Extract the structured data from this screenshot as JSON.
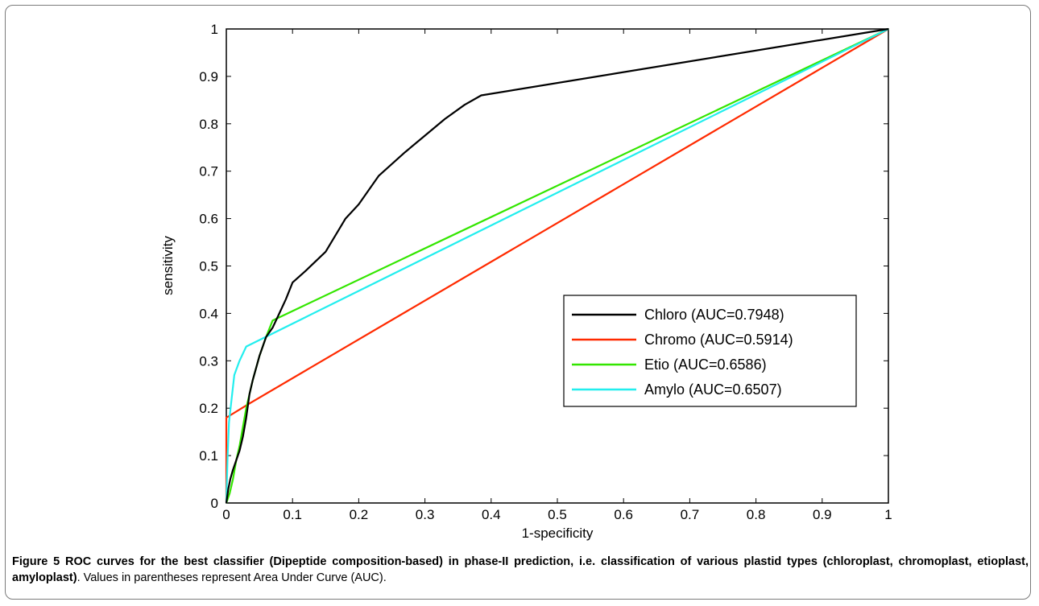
{
  "chart_data": {
    "type": "line",
    "title": "",
    "xlabel": "1-specificity",
    "ylabel": "sensitivity",
    "xlim": [
      0,
      1
    ],
    "ylim": [
      0,
      1
    ],
    "xticks": [
      "0",
      "0.1",
      "0.2",
      "0.3",
      "0.4",
      "0.5",
      "0.6",
      "0.7",
      "0.8",
      "0.9",
      "1"
    ],
    "yticks": [
      "0",
      "0.1",
      "0.2",
      "0.3",
      "0.4",
      "0.5",
      "0.6",
      "0.7",
      "0.8",
      "0.9",
      "1"
    ],
    "grid": false,
    "legend_position": "center-right",
    "series": [
      {
        "name": "Chloro (AUC=0.7948)",
        "color": "#000000",
        "x": [
          0,
          0.003,
          0.006,
          0.01,
          0.015,
          0.02,
          0.025,
          0.03,
          0.035,
          0.04,
          0.05,
          0.06,
          0.07,
          0.08,
          0.09,
          0.1,
          0.12,
          0.15,
          0.18,
          0.2,
          0.23,
          0.27,
          0.3,
          0.33,
          0.36,
          0.385,
          1
        ],
        "y": [
          0,
          0.03,
          0.05,
          0.07,
          0.09,
          0.11,
          0.14,
          0.18,
          0.23,
          0.26,
          0.31,
          0.35,
          0.37,
          0.4,
          0.43,
          0.465,
          0.49,
          0.53,
          0.6,
          0.63,
          0.69,
          0.74,
          0.775,
          0.81,
          0.84,
          0.86,
          1
        ]
      },
      {
        "name": "Chromo (AUC=0.5914)",
        "color": "#ff2a00",
        "x": [
          0,
          0,
          0.035,
          1
        ],
        "y": [
          0,
          0.18,
          0.21,
          1
        ]
      },
      {
        "name": "Etio (AUC=0.6586)",
        "color": "#33e600",
        "x": [
          0,
          0.005,
          0.01,
          0.015,
          0.02,
          0.03,
          0.04,
          0.05,
          0.06,
          0.07,
          1
        ],
        "y": [
          0,
          0.02,
          0.05,
          0.09,
          0.12,
          0.2,
          0.26,
          0.31,
          0.35,
          0.385,
          1
        ]
      },
      {
        "name": "Amylo (AUC=0.6507)",
        "color": "#22eeee",
        "x": [
          0,
          0.002,
          0.004,
          0.008,
          0.012,
          0.02,
          0.03,
          1
        ],
        "y": [
          0,
          0.1,
          0.17,
          0.22,
          0.27,
          0.3,
          0.33,
          1
        ]
      }
    ]
  },
  "caption": {
    "lead": "Figure 5 ROC curves for the best classifier (Dipeptide composition-based) in phase-II prediction, i.e. classification of various plastid types (chloroplast, chromoplast, etioplast, amyloplast)",
    "rest": ". Values in parentheses represent Area Under Curve (AUC)."
  }
}
